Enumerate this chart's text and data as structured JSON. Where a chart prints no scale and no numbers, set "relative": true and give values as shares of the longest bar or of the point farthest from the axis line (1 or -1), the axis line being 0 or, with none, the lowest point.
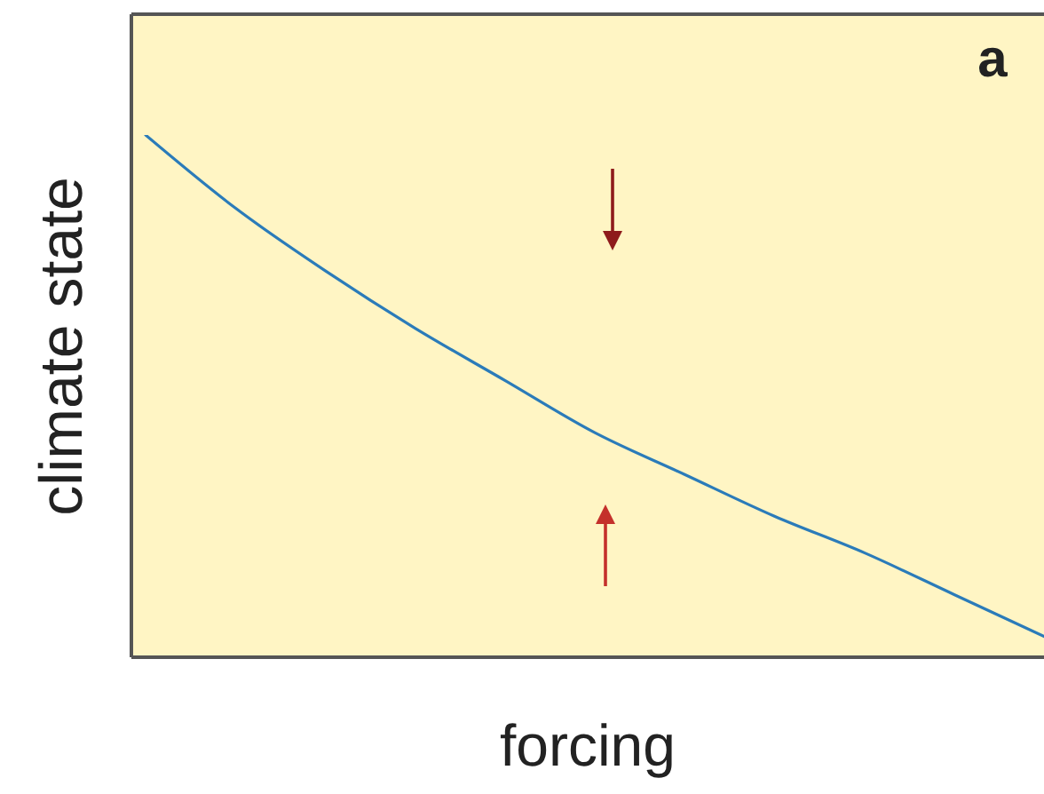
{
  "chart_data": {
    "type": "line",
    "xlabel": "forcing",
    "ylabel": "climate state",
    "annotations": [
      "a"
    ],
    "relative": true,
    "categories": [
      null,
      null,
      null,
      null,
      null,
      null,
      null,
      null,
      null,
      null,
      null
    ],
    "values": [
      1.0,
      0.86,
      0.74,
      0.63,
      0.53,
      0.43,
      0.35,
      0.27,
      0.2,
      0.12,
      0.04
    ],
    "color": "#2b7bb9"
  }
}
